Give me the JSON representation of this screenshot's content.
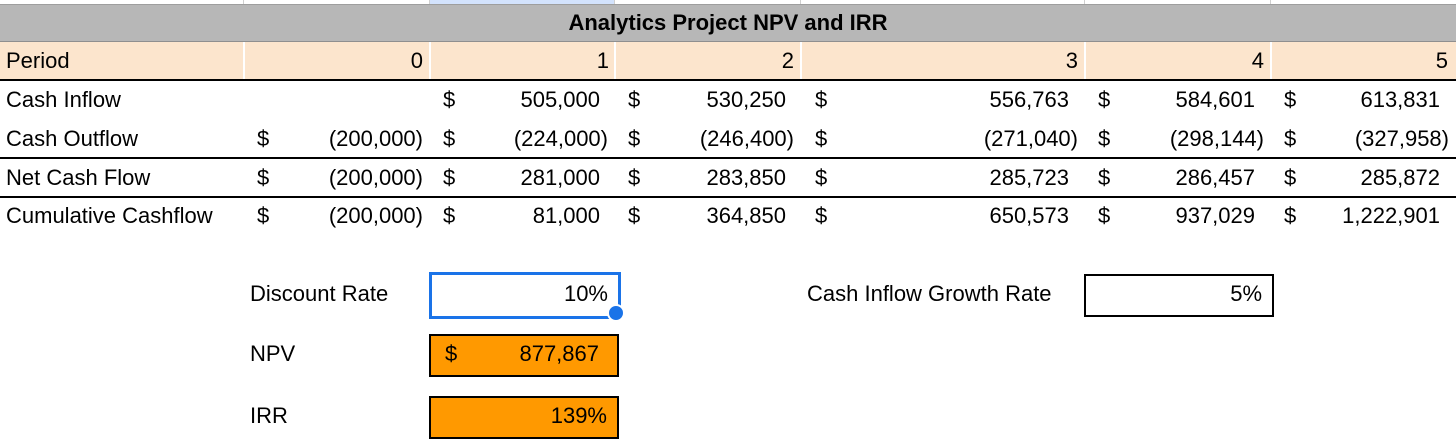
{
  "sheet": {
    "title": "Analytics Project NPV and IRR",
    "period_label": "Period",
    "periods": [
      "0",
      "1",
      "2",
      "3",
      "4",
      "5"
    ],
    "currency": "$",
    "rows": [
      {
        "label": "Cash Inflow",
        "values": [
          "",
          "505,000",
          "530,250",
          "556,763",
          "584,601",
          "613,831"
        ]
      },
      {
        "label": "Cash Outflow",
        "values": [
          "(200,000)",
          "(224,000)",
          "(246,400)",
          "(271,040)",
          "(298,144)",
          "(327,958)"
        ]
      },
      {
        "label": "Net Cash Flow",
        "values": [
          "(200,000)",
          "281,000",
          "283,850",
          "285,723",
          "286,457",
          "285,872"
        ]
      },
      {
        "label": "Cumulative Cashflow",
        "values": [
          "(200,000)",
          "81,000",
          "364,850",
          "650,573",
          "937,029",
          "1,222,901"
        ]
      }
    ]
  },
  "inputs": {
    "discount_rate_label": "Discount Rate",
    "discount_rate_value": "10%",
    "growth_rate_label": "Cash Inflow Growth Rate",
    "growth_rate_value": "5%",
    "npv_label": "NPV",
    "npv_currency": "$",
    "npv_value": "877,867",
    "irr_label": "IRR",
    "irr_value": "139%"
  },
  "colors": {
    "title_bg": "#b7b7b7",
    "period_bg": "#fce5cd",
    "result_bg": "#ff9900",
    "selection": "#1a73e8"
  }
}
